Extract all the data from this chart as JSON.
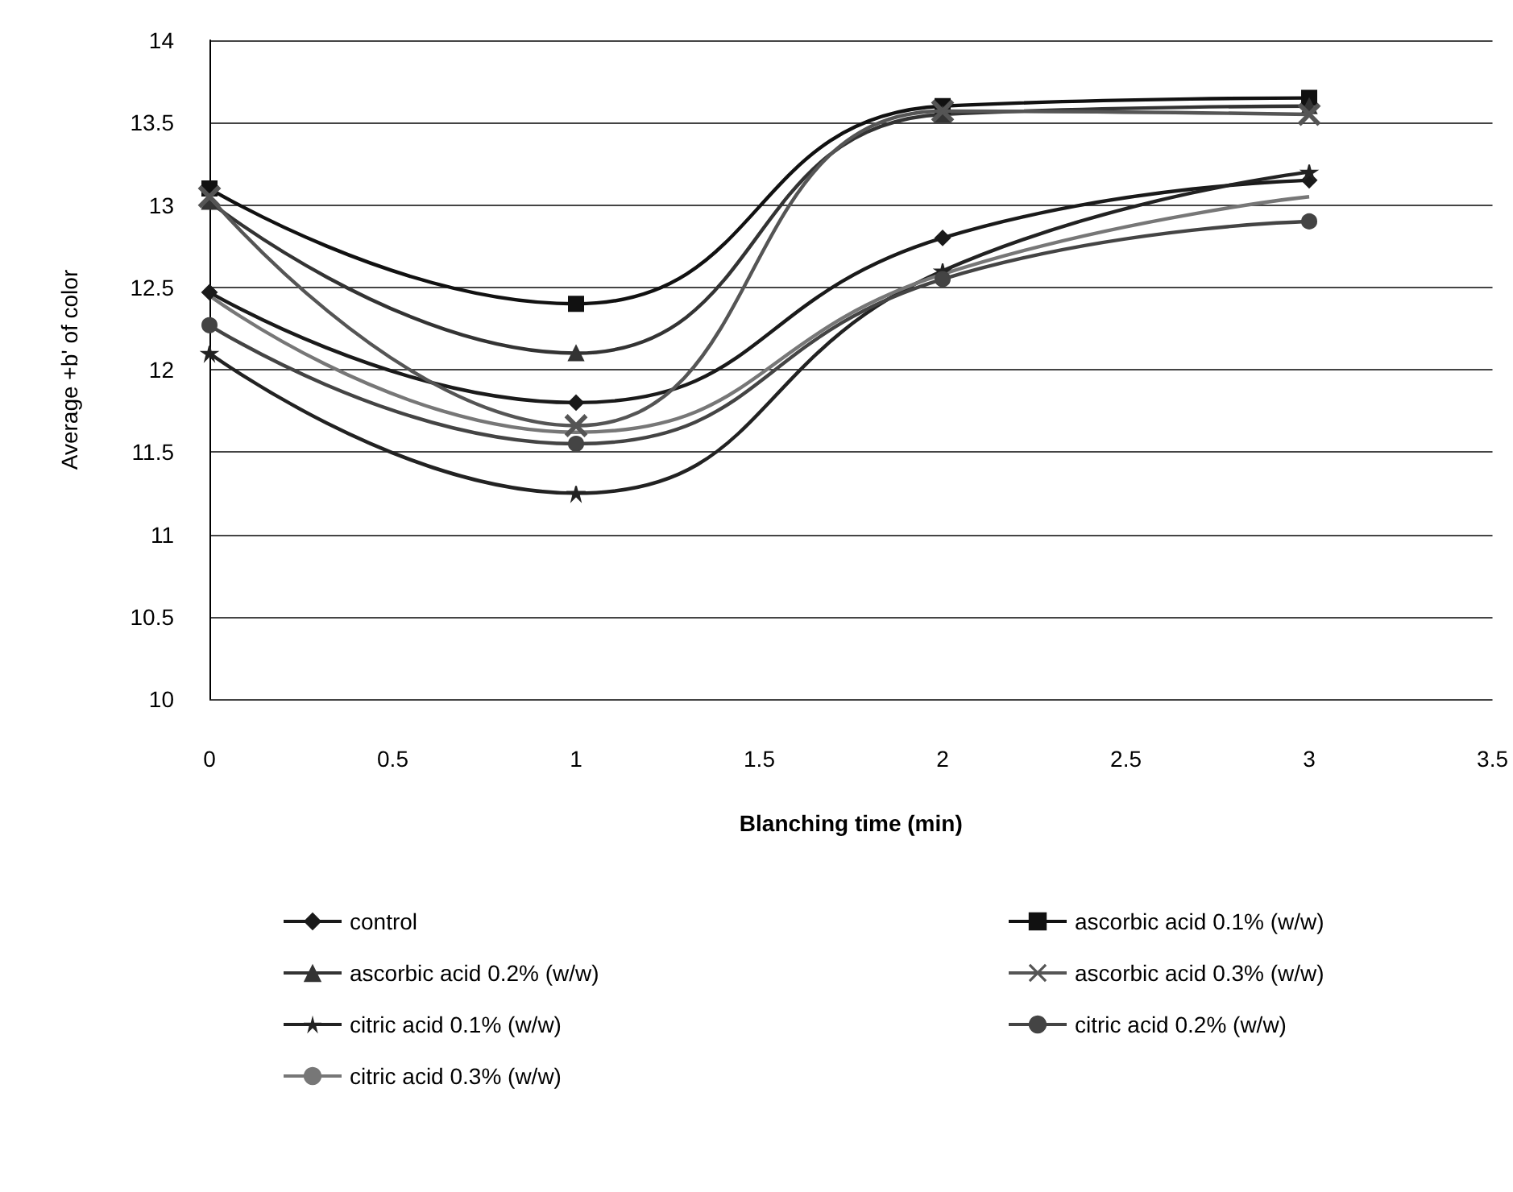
{
  "chart_data": {
    "type": "line",
    "xlabel": "Blanching time (min)",
    "ylabel": "Average +b' of color",
    "x": [
      0,
      1,
      2,
      3
    ],
    "xlim": [
      0,
      3.5
    ],
    "xticks": [
      0,
      0.5,
      1,
      1.5,
      2,
      2.5,
      3,
      3.5
    ],
    "ylim": [
      10,
      14
    ],
    "yticks": [
      10,
      10.5,
      11,
      11.5,
      12,
      12.5,
      13,
      13.5,
      14
    ],
    "grid": "y",
    "legend": "bottom",
    "series": [
      {
        "name": "control",
        "color": "#1a1a1a",
        "marker": "diamond",
        "values": [
          12.47,
          11.8,
          12.8,
          13.15
        ]
      },
      {
        "name": "ascorbic acid 0.1% (w/w)",
        "color": "#111111",
        "marker": "square",
        "values": [
          13.1,
          12.4,
          13.6,
          13.65
        ]
      },
      {
        "name": "ascorbic acid 0.2% (w/w)",
        "color": "#333333",
        "marker": "triangle",
        "values": [
          13.02,
          12.1,
          13.55,
          13.6
        ]
      },
      {
        "name": "ascorbic acid 0.3% (w/w)",
        "color": "#555555",
        "marker": "cross",
        "values": [
          13.05,
          11.66,
          13.57,
          13.55
        ]
      },
      {
        "name": "citric acid 0.1% (w/w)",
        "color": "#222222",
        "marker": "star",
        "values": [
          12.1,
          11.25,
          12.6,
          13.2
        ]
      },
      {
        "name": "citric acid 0.2% (w/w)",
        "color": "#444444",
        "marker": "circle",
        "values": [
          12.27,
          11.55,
          12.55,
          12.9
        ]
      },
      {
        "name": "citric acid 0.3% (w/w)",
        "color": "#777777",
        "marker": "none",
        "values": [
          12.45,
          11.62,
          12.58,
          13.05
        ]
      }
    ]
  }
}
